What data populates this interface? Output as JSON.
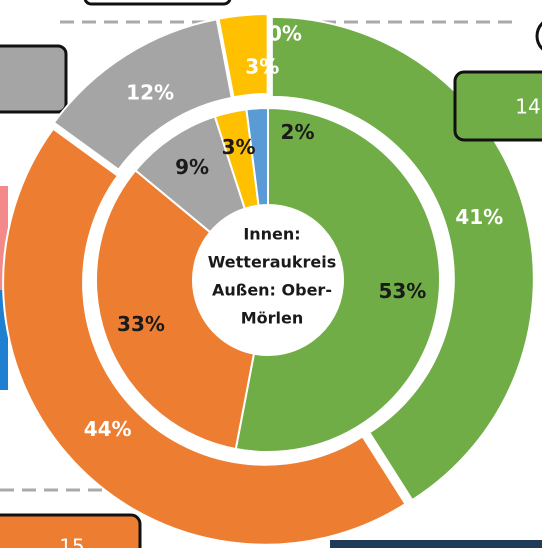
{
  "chart_data": {
    "type": "donut",
    "center_text": [
      "Innen:",
      "Wetteraukreis",
      "Außen: Ober-",
      "Mörlen"
    ],
    "rings": [
      {
        "values": [
          53,
          33,
          9,
          3,
          2
        ],
        "value_labels": [
          "53%",
          "33%",
          "9%",
          "3%",
          "2%"
        ],
        "colors": [
          "#70ad47",
          "#ed7d31",
          "#a5a5a5",
          "#ffc000",
          "#5b9bd5"
        ]
      },
      {
        "values": [
          41,
          44,
          12,
          3,
          0
        ],
        "value_labels": [
          "41%",
          "44%",
          "12%",
          "3%",
          "0%"
        ],
        "colors": [
          "#70ad47",
          "#ed7d31",
          "#a5a5a5",
          "#ffc000",
          "#5b9bd5"
        ]
      }
    ],
    "side_boxes": [
      "14",
      "15"
    ]
  }
}
